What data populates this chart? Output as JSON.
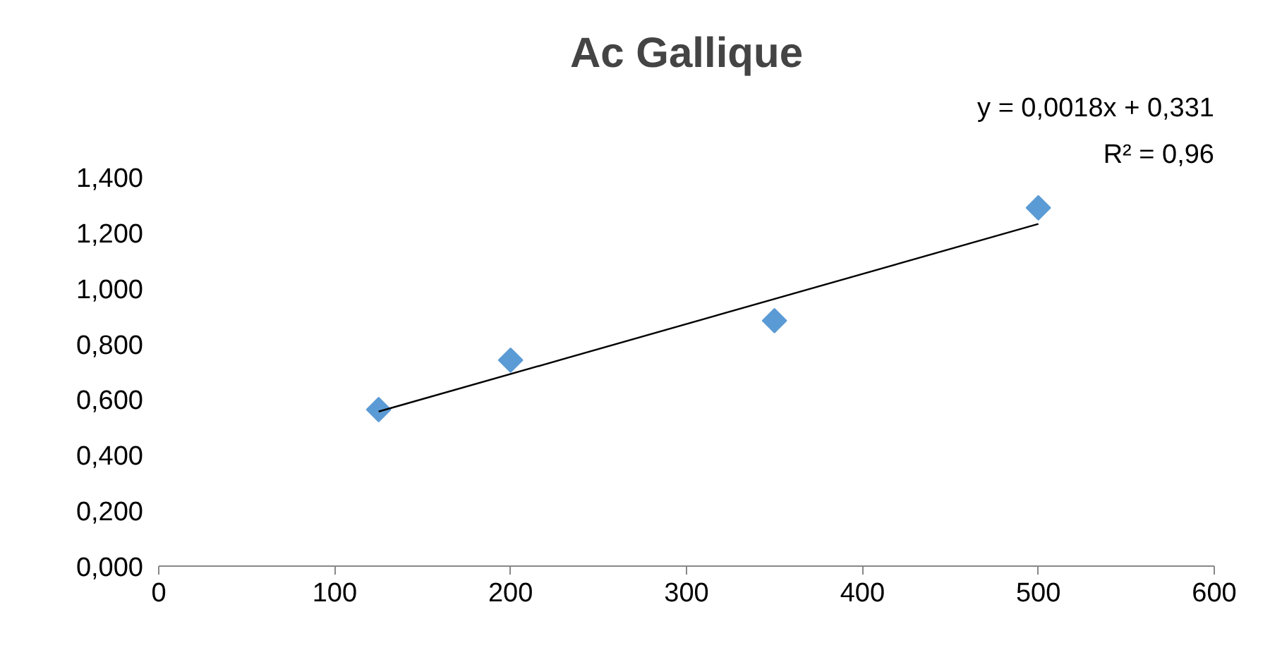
{
  "chart_data": {
    "type": "scatter",
    "title": "Ac Gallique",
    "xlim": [
      0,
      600
    ],
    "xticks": [
      0,
      100,
      200,
      300,
      400,
      500,
      600
    ],
    "ylim": [
      0,
      1.4
    ],
    "yticks": [
      {
        "value": 0,
        "label": "0,000"
      },
      {
        "value": 0.2,
        "label": "0,200"
      },
      {
        "value": 0.4,
        "label": "0,400"
      },
      {
        "value": 0.6,
        "label": "0,600"
      },
      {
        "value": 0.8,
        "label": "0,800"
      },
      {
        "value": 1.0,
        "label": "1,000"
      },
      {
        "value": 1.2,
        "label": "1,200"
      },
      {
        "value": 1.4,
        "label": "1,400"
      }
    ],
    "x": [
      125,
      200,
      350,
      500
    ],
    "series": [
      {
        "color": "#5b9bd5",
        "marker": "diamond",
        "values": [
          0.563,
          0.741,
          0.883,
          1.289
        ]
      },
      {
        "type": "line",
        "color": "#000000",
        "marker": "none",
        "x": [
          125,
          500
        ],
        "values": [
          0.556,
          1.231
        ]
      }
    ],
    "annotations": [
      "y = 0,0018x + 0,331",
      "R² = 0,96"
    ],
    "grid": false
  }
}
